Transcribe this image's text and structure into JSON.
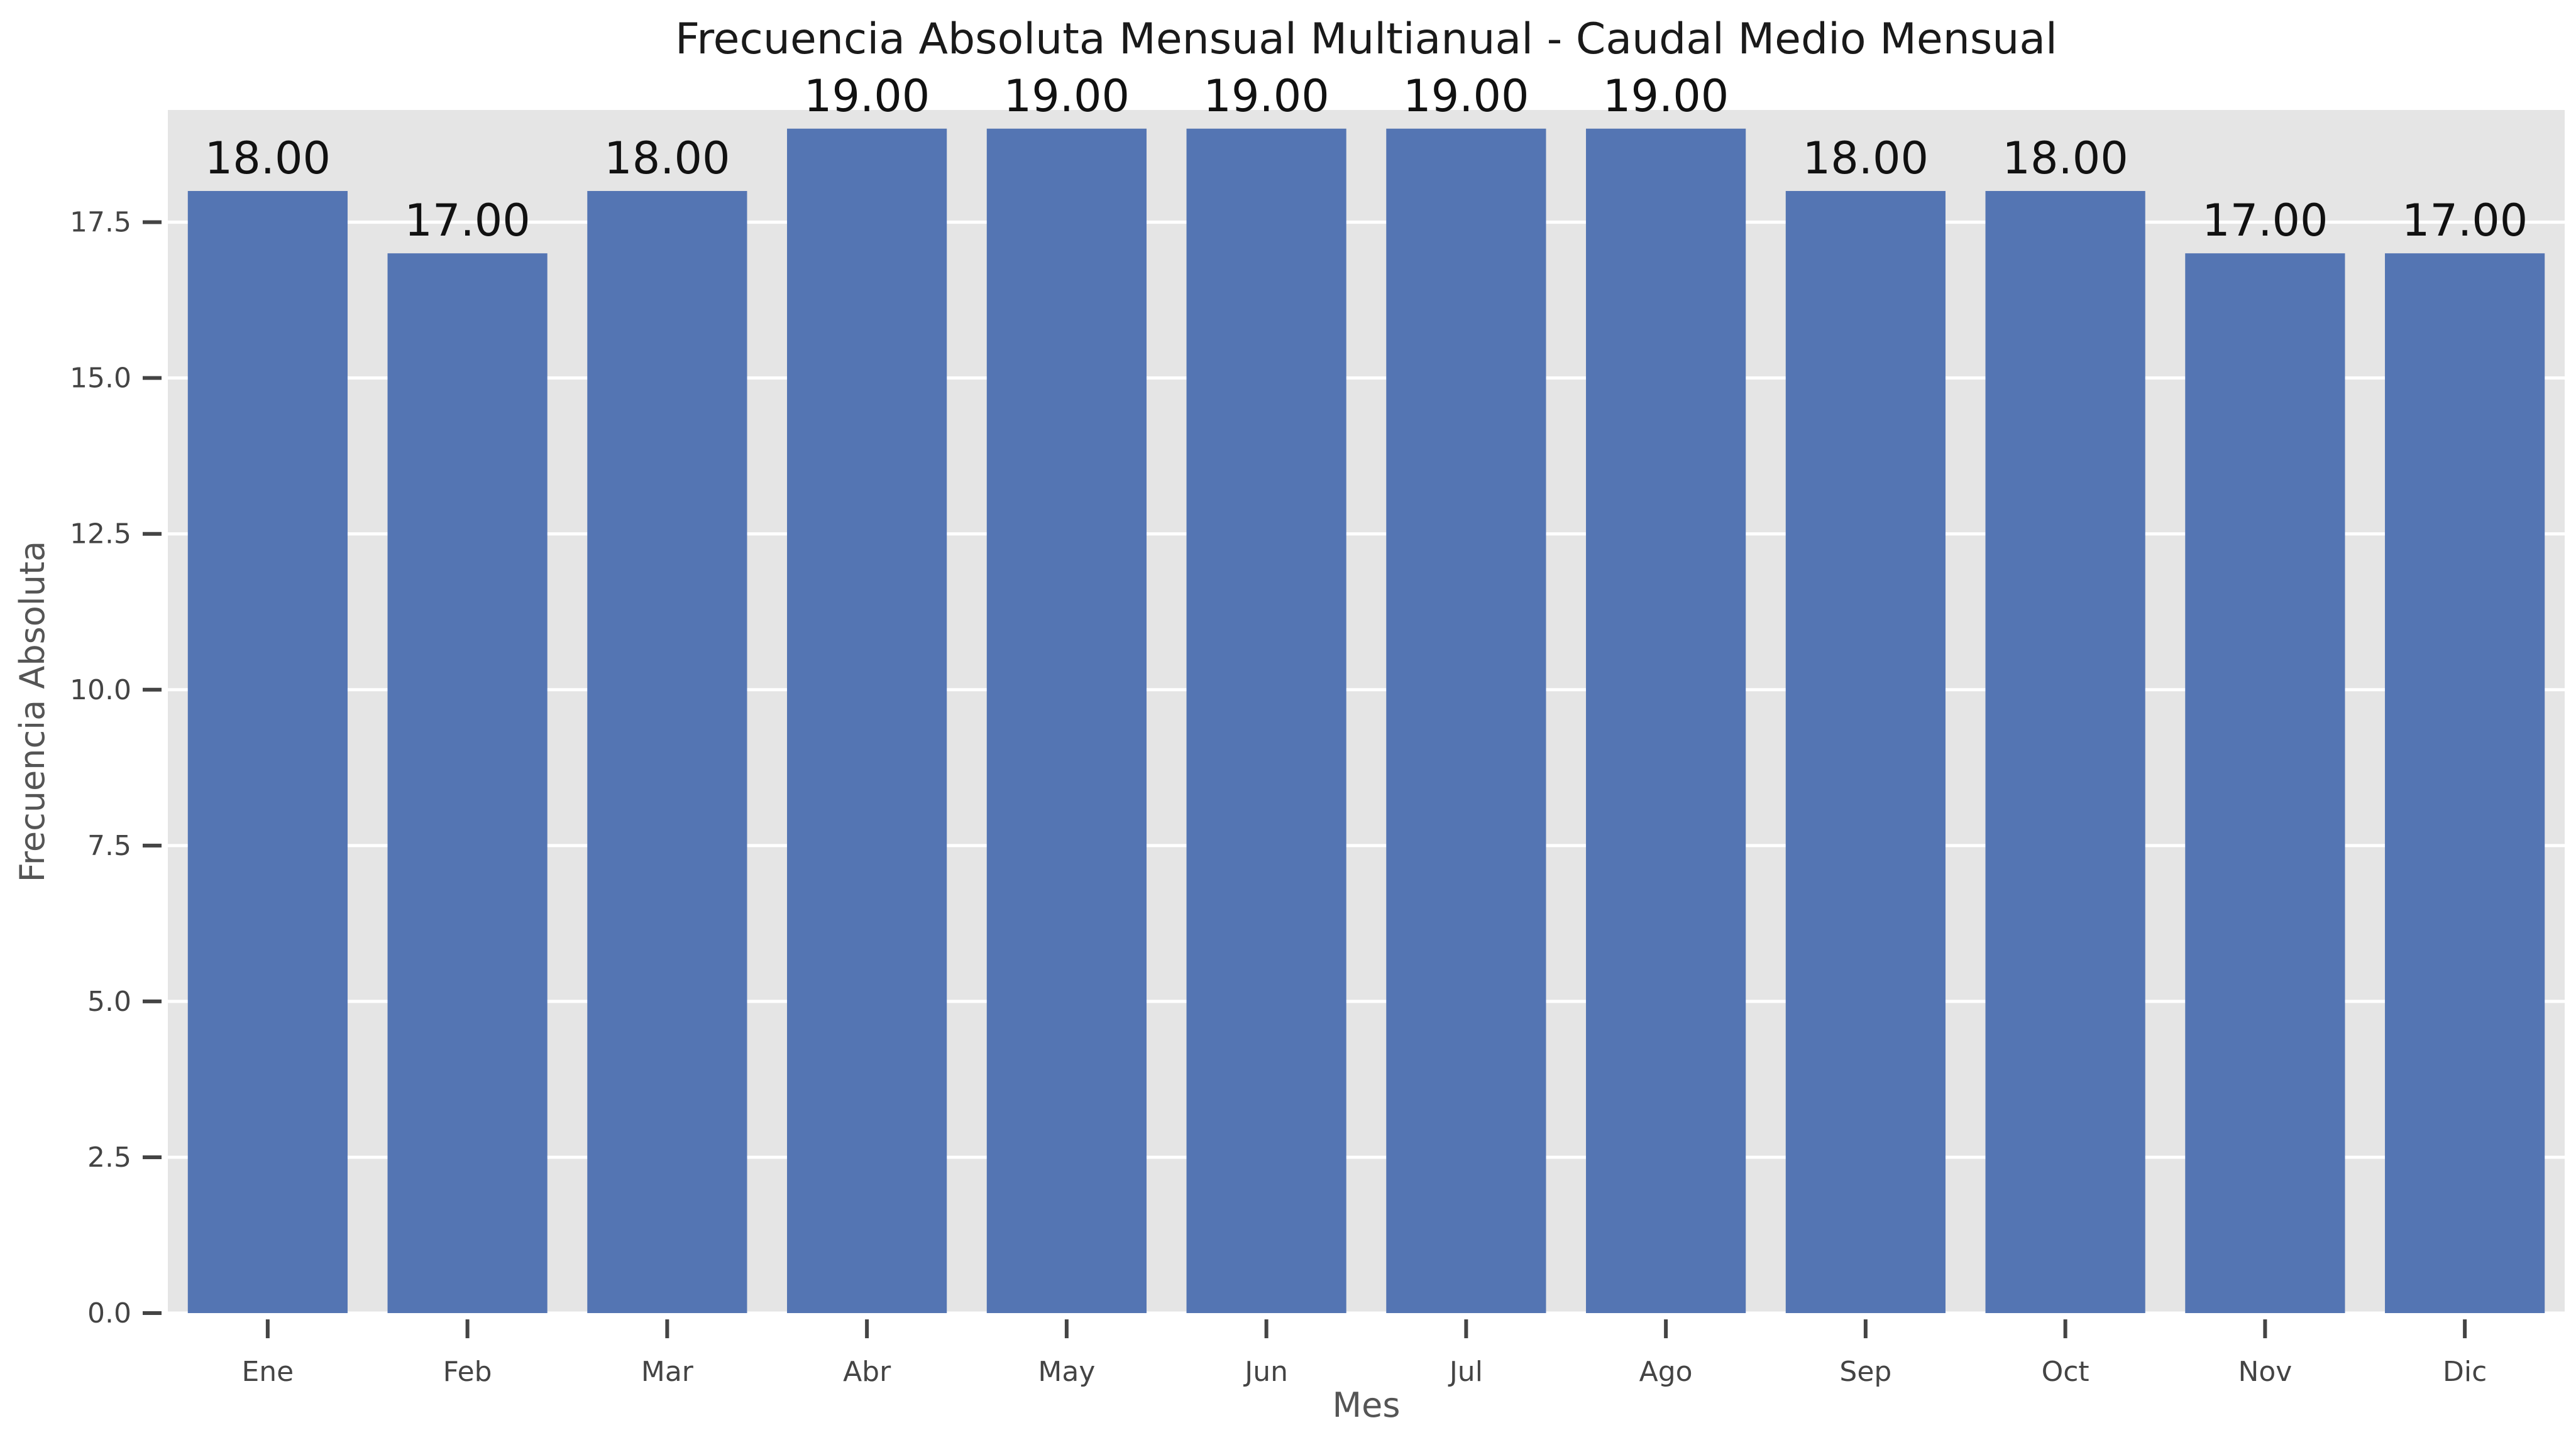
{
  "chart_data": {
    "type": "bar",
    "title": "Frecuencia Absoluta Mensual Multianual - Caudal Medio Mensual",
    "xlabel": "Mes",
    "ylabel": "Frecuencia Absoluta",
    "categories": [
      "Ene",
      "Feb",
      "Mar",
      "Abr",
      "May",
      "Jun",
      "Jul",
      "Ago",
      "Sep",
      "Oct",
      "Nov",
      "Dic"
    ],
    "values": [
      18,
      17,
      18,
      19,
      19,
      19,
      19,
      19,
      18,
      18,
      17,
      17
    ],
    "data_labels": [
      "18.00",
      "17.00",
      "18.00",
      "19.00",
      "19.00",
      "19.00",
      "19.00",
      "19.00",
      "18.00",
      "18.00",
      "17.00",
      "17.00"
    ],
    "ylim": [
      0,
      19.3
    ],
    "yticks": [
      0,
      2.5,
      5,
      7.5,
      10,
      12.5,
      15,
      17.5
    ],
    "ytick_labels": [
      "0.0",
      "2.5",
      "5.0",
      "7.5",
      "10.0",
      "12.5",
      "15.0",
      "17.5"
    ],
    "grid": "horizontal",
    "legend": "none",
    "colors": {
      "bar": "#5475b3",
      "plot_background": "#e5e5e5",
      "grid": "#ffffff",
      "tick": "#444444"
    }
  }
}
